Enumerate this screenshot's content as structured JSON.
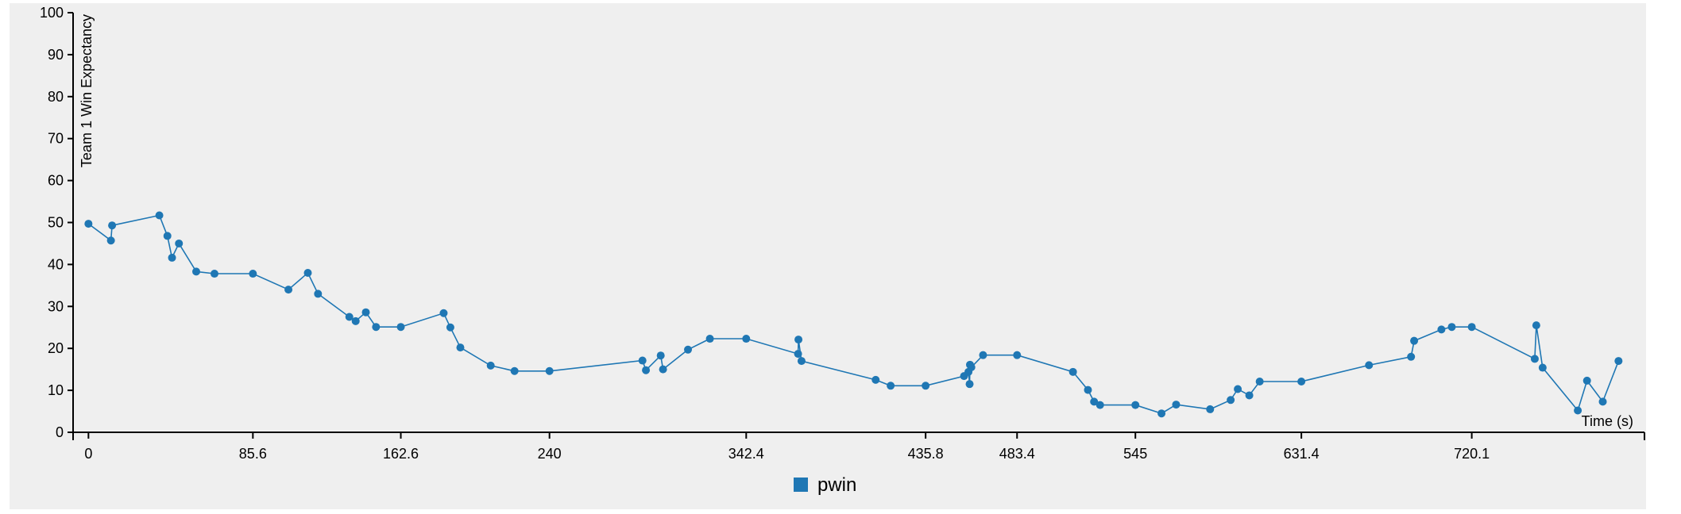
{
  "colors": {
    "series": "#1f77b4",
    "background": "#efefef",
    "axis": "#000000"
  },
  "chart_data": {
    "type": "line",
    "xlabel": "Time (s)",
    "ylabel": "Team 1 Win Expectancy",
    "xlim": [
      -8,
      810
    ],
    "ylim": [
      0,
      100
    ],
    "x_ticks": [
      0,
      85.6,
      162.6,
      240,
      342.4,
      435.8,
      483.4,
      545,
      631.4,
      720.1
    ],
    "x_tick_labels": [
      "0",
      "85.6",
      "162.6",
      "240",
      "342.4",
      "435.8",
      "483.4",
      "545",
      "631.4",
      "720.1"
    ],
    "y_ticks": [
      0,
      10,
      20,
      30,
      40,
      50,
      60,
      70,
      80,
      90,
      100
    ],
    "y_tick_labels": [
      "0",
      "10",
      "20",
      "30",
      "40",
      "50",
      "60",
      "70",
      "80",
      "90",
      "100"
    ],
    "grid": false,
    "legend": {
      "position": "bottom-center",
      "entries": [
        "pwin"
      ]
    },
    "series": [
      {
        "name": "pwin",
        "x": [
          0,
          11.7,
          12.3,
          36.9,
          41.1,
          43.5,
          47.1,
          56.1,
          65.6,
          85.6,
          104.1,
          114.2,
          119.5,
          135.8,
          139.1,
          144.4,
          149.7,
          162.6,
          184.9,
          188.4,
          193.6,
          209.4,
          221.8,
          240,
          288.4,
          290.2,
          297.9,
          299.1,
          312.1,
          323.5,
          342.4,
          369.4,
          369.6,
          371.2,
          409.8,
          417.6,
          435.8,
          455.8,
          458.1,
          458.7,
          458.9,
          459.6,
          465.7,
          483.4,
          512.5,
          520.3,
          523.5,
          526.6,
          545,
          558.6,
          566.2,
          583.9,
          594.6,
          598.3,
          604.3,
          609.7,
          631.4,
          666.6,
          688.5,
          690.1,
          704.3,
          709.7,
          720.1,
          752.9,
          753.7,
          757,
          775.3,
          780.1,
          788.3,
          796.5
        ],
        "y": [
          49.7,
          45.7,
          49.3,
          51.7,
          46.8,
          41.6,
          45,
          38.3,
          37.8,
          37.8,
          34,
          38,
          33,
          27.5,
          26.5,
          28.6,
          25.1,
          25.1,
          28.4,
          25,
          20.2,
          15.9,
          14.6,
          14.6,
          17.1,
          14.8,
          18.3,
          15,
          19.7,
          22.3,
          22.3,
          18.7,
          22.1,
          17,
          12.5,
          11.1,
          11.1,
          13.4,
          14.4,
          11.5,
          16.1,
          15.5,
          18.4,
          18.4,
          14.4,
          10.1,
          7.3,
          6.5,
          6.5,
          4.5,
          6.6,
          5.5,
          7.7,
          10.3,
          8.8,
          12.1,
          12.1,
          16,
          18,
          21.8,
          24.5,
          25.1,
          25.1,
          17.5,
          25.5,
          15.4,
          5.2,
          12.3,
          7.3,
          17
        ]
      }
    ]
  }
}
